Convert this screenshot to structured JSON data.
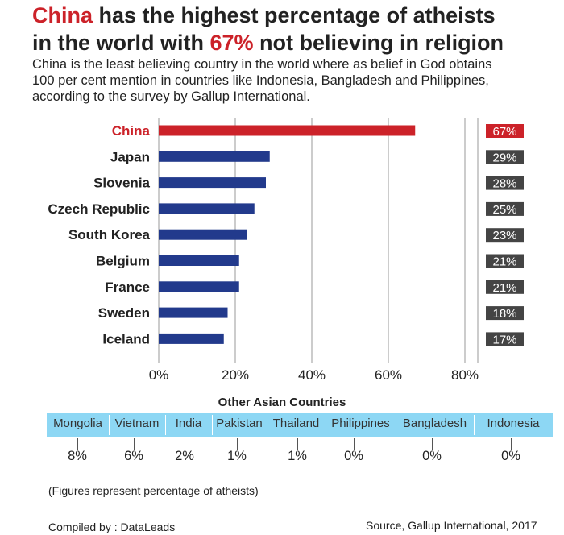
{
  "header": {
    "title_line1_accent": "China",
    "title_line1_rest": " has the highest percentage of atheists",
    "title_line2_start": "in the world with ",
    "title_line2_accent": "67%",
    "title_line2_rest": " not believing in religion",
    "subtitle_line1": "China is the least believing country in the world where as belief in God obtains",
    "subtitle_line2": "100 per cent mention in countries like Indonesia, Bangladesh and Philippines,",
    "subtitle_line3": "according to the survey by Gallup International."
  },
  "colors": {
    "accent": "#cc2229",
    "bar": "#223a8c",
    "label_box": "#444444",
    "strip": "#8dd7f4"
  },
  "chart_data": {
    "type": "bar",
    "orientation": "horizontal",
    "categories": [
      "China",
      "Japan",
      "Slovenia",
      "Czech Republic",
      "South Korea",
      "Belgium",
      "France",
      "Sweden",
      "Iceland"
    ],
    "values": [
      67,
      29,
      28,
      25,
      23,
      21,
      21,
      18,
      17
    ],
    "value_labels": [
      "67%",
      "29%",
      "28%",
      "25%",
      "23%",
      "21%",
      "21%",
      "18%",
      "17%"
    ],
    "highlight_category": "China",
    "xlim": [
      0,
      80
    ],
    "x_ticks": [
      0,
      20,
      40,
      60,
      80
    ],
    "x_tick_labels": [
      "0%",
      "20%",
      "40%",
      "60%",
      "80%"
    ],
    "grid": "vertical"
  },
  "other_asian": {
    "title": "Other Asian Countries",
    "countries": [
      "Mongolia",
      "Vietnam",
      "India",
      "Pakistan",
      "Thailand",
      "Philippines",
      "Bangladesh",
      "Indonesia"
    ],
    "values": [
      "8%",
      "6%",
      "2%",
      "1%",
      "1%",
      "0%",
      "0%",
      "0%"
    ]
  },
  "footer": {
    "note": "(Figures represent percentage of atheists)",
    "compiled": "Compiled by : DataLeads",
    "source": "Source, Gallup International, 2017"
  }
}
